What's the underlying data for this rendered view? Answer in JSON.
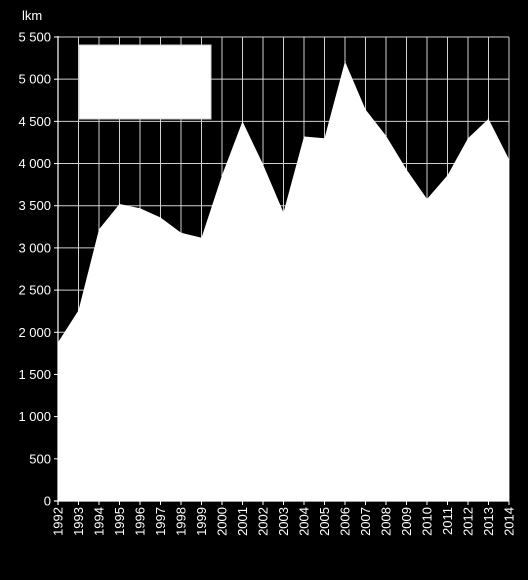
{
  "chart_data": {
    "type": "area",
    "unit_label": "lkm",
    "x": [
      "1992",
      "1993",
      "1994",
      "1995",
      "1996",
      "1997",
      "1998",
      "1999",
      "2000",
      "2001",
      "2002",
      "2003",
      "2004",
      "2005",
      "2006",
      "2007",
      "2008",
      "2009",
      "2010",
      "2011",
      "2012",
      "2013",
      "2014"
    ],
    "values": [
      1880,
      2260,
      3220,
      3520,
      3470,
      3360,
      3180,
      3120,
      3860,
      4500,
      3990,
      3420,
      4320,
      4300,
      5210,
      4640,
      4330,
      3930,
      3580,
      3860,
      4300,
      4530,
      4050
    ],
    "ylim": [
      0,
      5500
    ],
    "yticks": [
      0,
      500,
      1000,
      1500,
      2000,
      2500,
      3000,
      3500,
      4000,
      4500,
      5000,
      5500
    ],
    "ytick_labels": [
      "0",
      "500",
      "1 000",
      "1 500",
      "2 000",
      "2 500",
      "3 000",
      "3 500",
      "4 000",
      "4 500",
      "5 000",
      "5 500"
    ],
    "grid": true,
    "legend": "top-left",
    "colors": {
      "background": "#000000",
      "area": "#ffffff",
      "grid": "#d0d0d0",
      "axis": "#ffffff",
      "text": "#ffffff"
    }
  }
}
